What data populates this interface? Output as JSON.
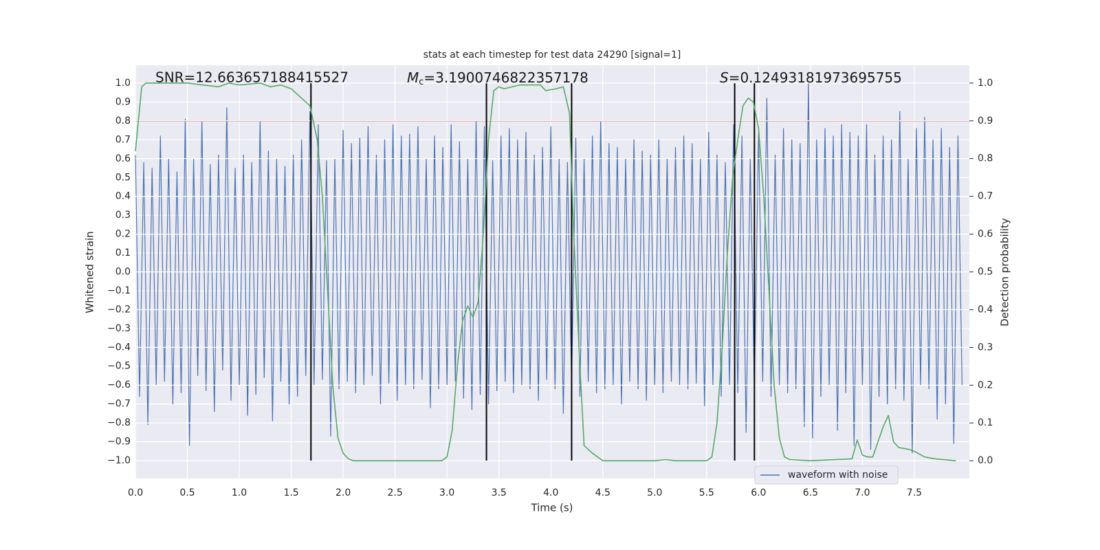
{
  "chart_data": {
    "type": "line",
    "title": "stats at each timestep for test data 24290 [signal=1]",
    "xlabel": "Time (s)",
    "ylabel": "Whitened strain",
    "y2label": "Detection probability",
    "annotations": {
      "snr": "SNR=12.663657188415527",
      "mc": {
        "symbol": "M",
        "subscript": "c",
        "text": "=3.1900746822357178"
      },
      "s": {
        "symbol": "S",
        "text": "=0.12493181973695755"
      }
    },
    "xlim": [
      0,
      8.03
    ],
    "ylim": [
      -1.095,
      1.095
    ],
    "y2lim": [
      -0.047,
      1.047
    ],
    "grid": true,
    "legend": "lower right",
    "xticks": [
      {
        "value": 0,
        "label": "0.0"
      },
      {
        "value": 0.5,
        "label": "0.5"
      },
      {
        "value": 1,
        "label": "1.0"
      },
      {
        "value": 1.5,
        "label": "1.5"
      },
      {
        "value": 2,
        "label": "2.0"
      },
      {
        "value": 2.5,
        "label": "2.5"
      },
      {
        "value": 3,
        "label": "3.0"
      },
      {
        "value": 3.5,
        "label": "3.5"
      },
      {
        "value": 4,
        "label": "4.0"
      },
      {
        "value": 4.5,
        "label": "4.5"
      },
      {
        "value": 5,
        "label": "5.0"
      },
      {
        "value": 5.5,
        "label": "5.5"
      },
      {
        "value": 6,
        "label": "6.0"
      },
      {
        "value": 6.5,
        "label": "6.5"
      },
      {
        "value": 7,
        "label": "7.0"
      },
      {
        "value": 7.5,
        "label": "7.5"
      }
    ],
    "yticks": [
      {
        "value": -1,
        "label": "−1.0"
      },
      {
        "value": -0.9,
        "label": "−0.9"
      },
      {
        "value": -0.8,
        "label": "−0.8"
      },
      {
        "value": -0.7,
        "label": "−0.7"
      },
      {
        "value": -0.6,
        "label": "−0.6"
      },
      {
        "value": -0.5,
        "label": "−0.5"
      },
      {
        "value": -0.4,
        "label": "−0.4"
      },
      {
        "value": -0.3,
        "label": "−0.3"
      },
      {
        "value": -0.2,
        "label": "−0.2"
      },
      {
        "value": -0.1,
        "label": "−0.1"
      },
      {
        "value": 0,
        "label": "0.0"
      },
      {
        "value": 0.1,
        "label": "0.1"
      },
      {
        "value": 0.2,
        "label": "0.2"
      },
      {
        "value": 0.3,
        "label": "0.3"
      },
      {
        "value": 0.4,
        "label": "0.4"
      },
      {
        "value": 0.5,
        "label": "0.5"
      },
      {
        "value": 0.6,
        "label": "0.6"
      },
      {
        "value": 0.7,
        "label": "0.7"
      },
      {
        "value": 0.8,
        "label": "0.8"
      },
      {
        "value": 0.9,
        "label": "0.9"
      },
      {
        "value": 1,
        "label": "1.0"
      }
    ],
    "y2ticks": [
      {
        "value": 0,
        "label": "0.0"
      },
      {
        "value": 0.1,
        "label": "0.1"
      },
      {
        "value": 0.2,
        "label": "0.2"
      },
      {
        "value": 0.3,
        "label": "0.3"
      },
      {
        "value": 0.4,
        "label": "0.4"
      },
      {
        "value": 0.5,
        "label": "0.5"
      },
      {
        "value": 0.6,
        "label": "0.6"
      },
      {
        "value": 0.7,
        "label": "0.7"
      },
      {
        "value": 0.8,
        "label": "0.8"
      },
      {
        "value": 0.9,
        "label": "0.9"
      },
      {
        "value": 1,
        "label": "1.0"
      }
    ],
    "hline": {
      "y": 0.8,
      "color": "#c44e52"
    },
    "vlines": {
      "x": [
        1.69,
        3.38,
        4.2,
        5.77,
        5.96
      ],
      "ymin": -1,
      "ymax": 1,
      "color": "#000000"
    },
    "series": [
      {
        "name": "waveform with noise",
        "color": "#4c72b0",
        "x": [
          0,
          0.04,
          0.08,
          0.12,
          0.16,
          0.2,
          0.24,
          0.28,
          0.32,
          0.36,
          0.4,
          0.44,
          0.48,
          0.52,
          0.56,
          0.6,
          0.64,
          0.68,
          0.72,
          0.76,
          0.8,
          0.84,
          0.88,
          0.92,
          0.96,
          1,
          1.04,
          1.08,
          1.12,
          1.16,
          1.2,
          1.24,
          1.28,
          1.32,
          1.36,
          1.4,
          1.44,
          1.48,
          1.52,
          1.56,
          1.6,
          1.64,
          1.68,
          1.72,
          1.76,
          1.8,
          1.84,
          1.88,
          1.92,
          1.96,
          2,
          2.04,
          2.08,
          2.12,
          2.16,
          2.2,
          2.24,
          2.28,
          2.32,
          2.36,
          2.4,
          2.44,
          2.48,
          2.52,
          2.56,
          2.6,
          2.64,
          2.68,
          2.72,
          2.76,
          2.8,
          2.84,
          2.88,
          2.92,
          2.96,
          3,
          3.04,
          3.08,
          3.12,
          3.16,
          3.2,
          3.24,
          3.28,
          3.32,
          3.36,
          3.4,
          3.44,
          3.48,
          3.52,
          3.56,
          3.6,
          3.64,
          3.68,
          3.72,
          3.76,
          3.8,
          3.84,
          3.88,
          3.92,
          3.96,
          4,
          4.04,
          4.08,
          4.12,
          4.16,
          4.2,
          4.24,
          4.28,
          4.32,
          4.36,
          4.4,
          4.44,
          4.48,
          4.52,
          4.56,
          4.6,
          4.64,
          4.68,
          4.72,
          4.76,
          4.8,
          4.84,
          4.88,
          4.92,
          4.96,
          5,
          5.04,
          5.08,
          5.12,
          5.16,
          5.2,
          5.24,
          5.28,
          5.32,
          5.36,
          5.4,
          5.44,
          5.48,
          5.52,
          5.56,
          5.6,
          5.64,
          5.68,
          5.72,
          5.76,
          5.8,
          5.84,
          5.88,
          5.92,
          5.96,
          6,
          6.04,
          6.08,
          6.12,
          6.16,
          6.2,
          6.24,
          6.28,
          6.32,
          6.36,
          6.4,
          6.44,
          6.48,
          6.52,
          6.56,
          6.6,
          6.64,
          6.68,
          6.72,
          6.76,
          6.8,
          6.84,
          6.88,
          6.92,
          6.96,
          7,
          7.04,
          7.08,
          7.12,
          7.16,
          7.2,
          7.24,
          7.28,
          7.32,
          7.36,
          7.4,
          7.44,
          7.48,
          7.52,
          7.56,
          7.6,
          7.64,
          7.68,
          7.72,
          7.76,
          7.8,
          7.84,
          7.88,
          7.92,
          7.96
        ],
        "values": [
          0.62,
          -0.66,
          0.58,
          -0.81,
          0.55,
          -0.6,
          0.72,
          -0.58,
          0.6,
          -0.7,
          0.53,
          -0.64,
          0.81,
          -0.92,
          0.6,
          -0.55,
          0.8,
          -0.63,
          0.57,
          -0.74,
          0.62,
          -0.52,
          0.87,
          -0.68,
          0.55,
          -0.6,
          0.62,
          -0.76,
          0.58,
          -0.65,
          0.8,
          -0.56,
          0.64,
          -0.79,
          0.6,
          -0.58,
          0.56,
          -0.7,
          0.62,
          -0.66,
          0.7,
          -0.55,
          0.85,
          -0.6,
          0.78,
          -0.57,
          0.59,
          -0.87,
          0.6,
          -0.62,
          0.75,
          -0.58,
          0.68,
          -0.64,
          0.71,
          -0.6,
          0.77,
          -0.55,
          0.62,
          -0.7,
          0.7,
          -0.59,
          0.78,
          -0.68,
          0.72,
          -0.6,
          0.73,
          -0.62,
          0.77,
          -0.57,
          0.6,
          -0.72,
          0.72,
          -0.62,
          0.66,
          -0.6,
          0.78,
          -0.58,
          0.69,
          -0.67,
          0.6,
          -0.73,
          0.8,
          -0.65,
          0.77,
          -0.7,
          0.59,
          -0.63,
          0.72,
          -0.58,
          0.76,
          -0.64,
          0.7,
          -0.6,
          0.74,
          -0.62,
          0.62,
          -0.68,
          0.66,
          -0.57,
          0.77,
          -0.62,
          0.6,
          -0.75,
          0.58,
          -0.6,
          0.71,
          -0.66,
          0.6,
          -0.58,
          0.72,
          -0.64,
          0.8,
          -0.62,
          0.68,
          -0.6,
          0.66,
          -0.7,
          0.6,
          -0.58,
          0.7,
          -0.62,
          0.64,
          -0.68,
          0.62,
          -0.6,
          0.7,
          -0.64,
          0.6,
          -0.58,
          0.66,
          -0.6,
          0.72,
          -0.62,
          0.68,
          -0.59,
          0.6,
          -0.71,
          0.74,
          -0.6,
          0.62,
          -0.66,
          0.58,
          -0.6,
          0.78,
          -0.64,
          0.72,
          -0.85,
          0.6,
          -0.62,
          0.74,
          -0.58,
          0.92,
          -0.66,
          0.62,
          -0.6,
          0.76,
          -0.64,
          0.7,
          -0.62,
          0.68,
          -0.82,
          1.0,
          -0.88,
          0.7,
          -0.66,
          0.76,
          -0.6,
          0.72,
          -0.84,
          0.78,
          -0.64,
          0.74,
          -0.92,
          0.72,
          -0.6,
          0.78,
          -0.94,
          0.62,
          -0.66,
          0.72,
          -0.7,
          0.7,
          -0.62,
          0.85,
          -0.68,
          0.6,
          -0.96,
          0.76,
          -0.6,
          0.82,
          -0.62,
          0.7,
          -0.78,
          0.76,
          -0.7,
          0.66,
          -0.91,
          0.72,
          -0.6
        ]
      },
      {
        "color": "#55a868",
        "axis": "y2",
        "x": [
          0,
          0.06,
          0.1,
          0.5,
          0.8,
          0.9,
          1.0,
          1.2,
          1.3,
          1.4,
          1.5,
          1.6,
          1.68,
          1.75,
          1.8,
          1.85,
          1.9,
          1.95,
          2.0,
          2.05,
          2.1,
          2.3,
          2.8,
          2.95,
          3.0,
          3.05,
          3.1,
          3.15,
          3.2,
          3.25,
          3.3,
          3.35,
          3.4,
          3.45,
          3.5,
          3.55,
          3.7,
          3.9,
          3.95,
          4.05,
          4.12,
          4.18,
          4.22,
          4.28,
          4.32,
          4.4,
          4.5,
          4.8,
          5.0,
          5.1,
          5.2,
          5.5,
          5.55,
          5.6,
          5.65,
          5.7,
          5.75,
          5.8,
          5.85,
          5.9,
          5.95,
          6.0,
          6.05,
          6.1,
          6.15,
          6.2,
          6.25,
          6.3,
          6.5,
          6.9,
          6.95,
          7.0,
          7.05,
          7.1,
          7.2,
          7.25,
          7.3,
          7.35,
          7.45,
          7.5,
          7.6,
          7.7,
          7.9
        ],
        "values": [
          0.82,
          0.99,
          1.0,
          1.0,
          0.99,
          1.0,
          0.995,
          1.0,
          0.99,
          0.995,
          0.985,
          0.96,
          0.94,
          0.85,
          0.7,
          0.45,
          0.2,
          0.06,
          0.02,
          0.005,
          0.0,
          0.0,
          0.0,
          0.0,
          0.01,
          0.08,
          0.25,
          0.37,
          0.41,
          0.38,
          0.42,
          0.6,
          0.85,
          0.98,
          0.99,
          0.985,
          0.995,
          0.995,
          0.98,
          0.985,
          0.99,
          0.92,
          0.6,
          0.25,
          0.04,
          0.02,
          0.0,
          0.0,
          0.0,
          0.003,
          0.0,
          0.0,
          0.01,
          0.1,
          0.3,
          0.55,
          0.75,
          0.85,
          0.94,
          0.96,
          0.95,
          0.88,
          0.7,
          0.45,
          0.2,
          0.06,
          0.01,
          0.003,
          0.0,
          0.005,
          0.055,
          0.015,
          0.01,
          0.01,
          0.09,
          0.12,
          0.05,
          0.035,
          0.03,
          0.025,
          0.01,
          0.005,
          0.0
        ]
      }
    ]
  }
}
